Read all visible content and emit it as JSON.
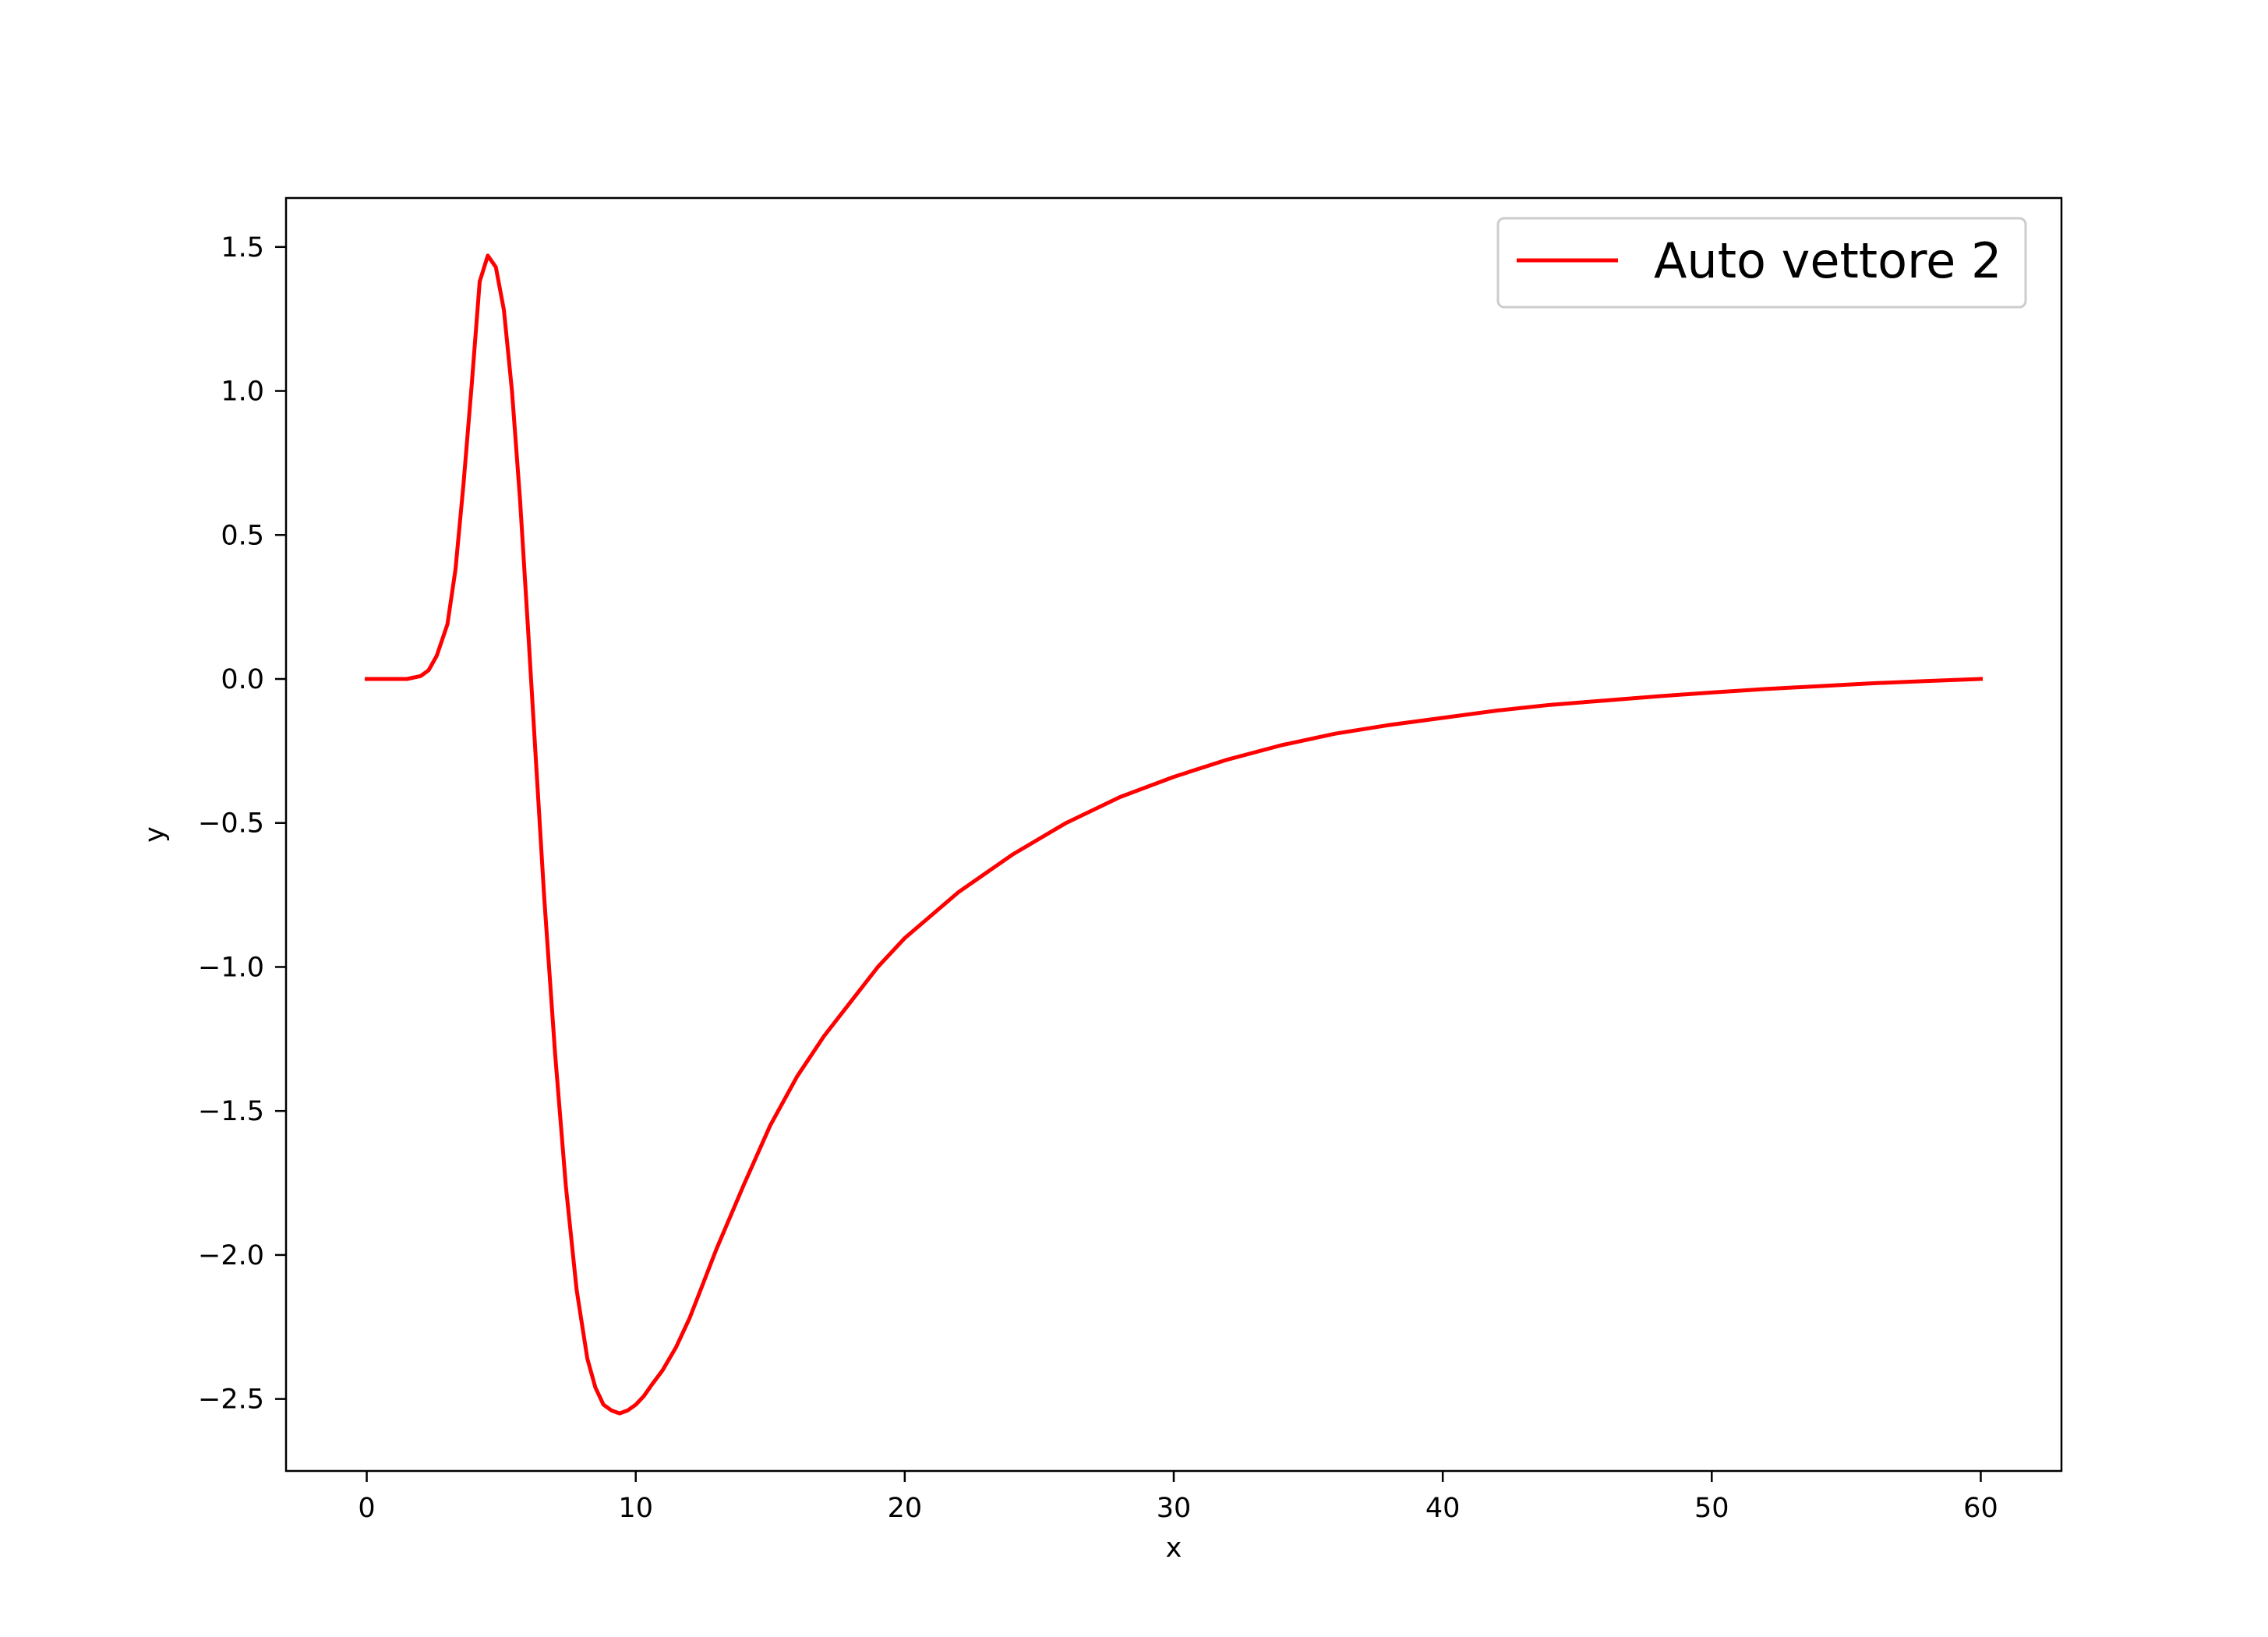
{
  "chart_data": {
    "type": "line",
    "title": "",
    "xlabel": "x",
    "ylabel": "y",
    "xlim": [
      -3,
      63
    ],
    "ylim": [
      -2.75,
      1.67
    ],
    "xticks": [
      0,
      10,
      20,
      30,
      40,
      50,
      60
    ],
    "xtick_labels": [
      "0",
      "10",
      "20",
      "30",
      "40",
      "50",
      "60"
    ],
    "yticks": [
      1.5,
      1.0,
      0.5,
      0.0,
      -0.5,
      -1.0,
      -1.5,
      -2.0,
      -2.5
    ],
    "ytick_labels": [
      "1.5",
      "1.0",
      "0.5",
      "0.0",
      "−0.5",
      "−1.0",
      "−1.5",
      "−2.0",
      "−2.5"
    ],
    "grid": false,
    "legend": {
      "placement": "top-right"
    },
    "series": [
      {
        "name": "Auto vettore 2",
        "color": "#ff0000",
        "x": [
          0,
          1,
          1.5,
          2,
          2.3,
          2.6,
          3,
          3.3,
          3.6,
          3.9,
          4.2,
          4.5,
          4.8,
          5.1,
          5.4,
          5.7,
          6,
          6.3,
          6.6,
          7,
          7.4,
          7.8,
          8.2,
          8.5,
          8.8,
          9.1,
          9.4,
          9.7,
          10,
          10.3,
          10.6,
          11,
          11.5,
          12,
          12.5,
          13,
          14,
          15,
          16,
          17,
          18,
          19,
          20,
          22,
          24,
          26,
          28,
          30,
          32,
          34,
          36,
          38,
          40,
          42,
          44,
          46,
          48,
          50,
          52,
          54,
          56,
          58,
          60
        ],
        "y": [
          0,
          0,
          0,
          0.01,
          0.03,
          0.08,
          0.19,
          0.38,
          0.68,
          1.02,
          1.38,
          1.47,
          1.43,
          1.28,
          1.0,
          0.62,
          0.17,
          -0.3,
          -0.76,
          -1.3,
          -1.76,
          -2.12,
          -2.36,
          -2.46,
          -2.52,
          -2.54,
          -2.55,
          -2.54,
          -2.52,
          -2.49,
          -2.45,
          -2.4,
          -2.32,
          -2.22,
          -2.1,
          -1.98,
          -1.76,
          -1.55,
          -1.38,
          -1.24,
          -1.12,
          -1.0,
          -0.9,
          -0.74,
          -0.61,
          -0.5,
          -0.41,
          -0.34,
          -0.28,
          -0.23,
          -0.19,
          -0.16,
          -0.135,
          -0.11,
          -0.09,
          -0.075,
          -0.06,
          -0.047,
          -0.035,
          -0.025,
          -0.015,
          -0.007,
          0.0
        ]
      }
    ]
  }
}
